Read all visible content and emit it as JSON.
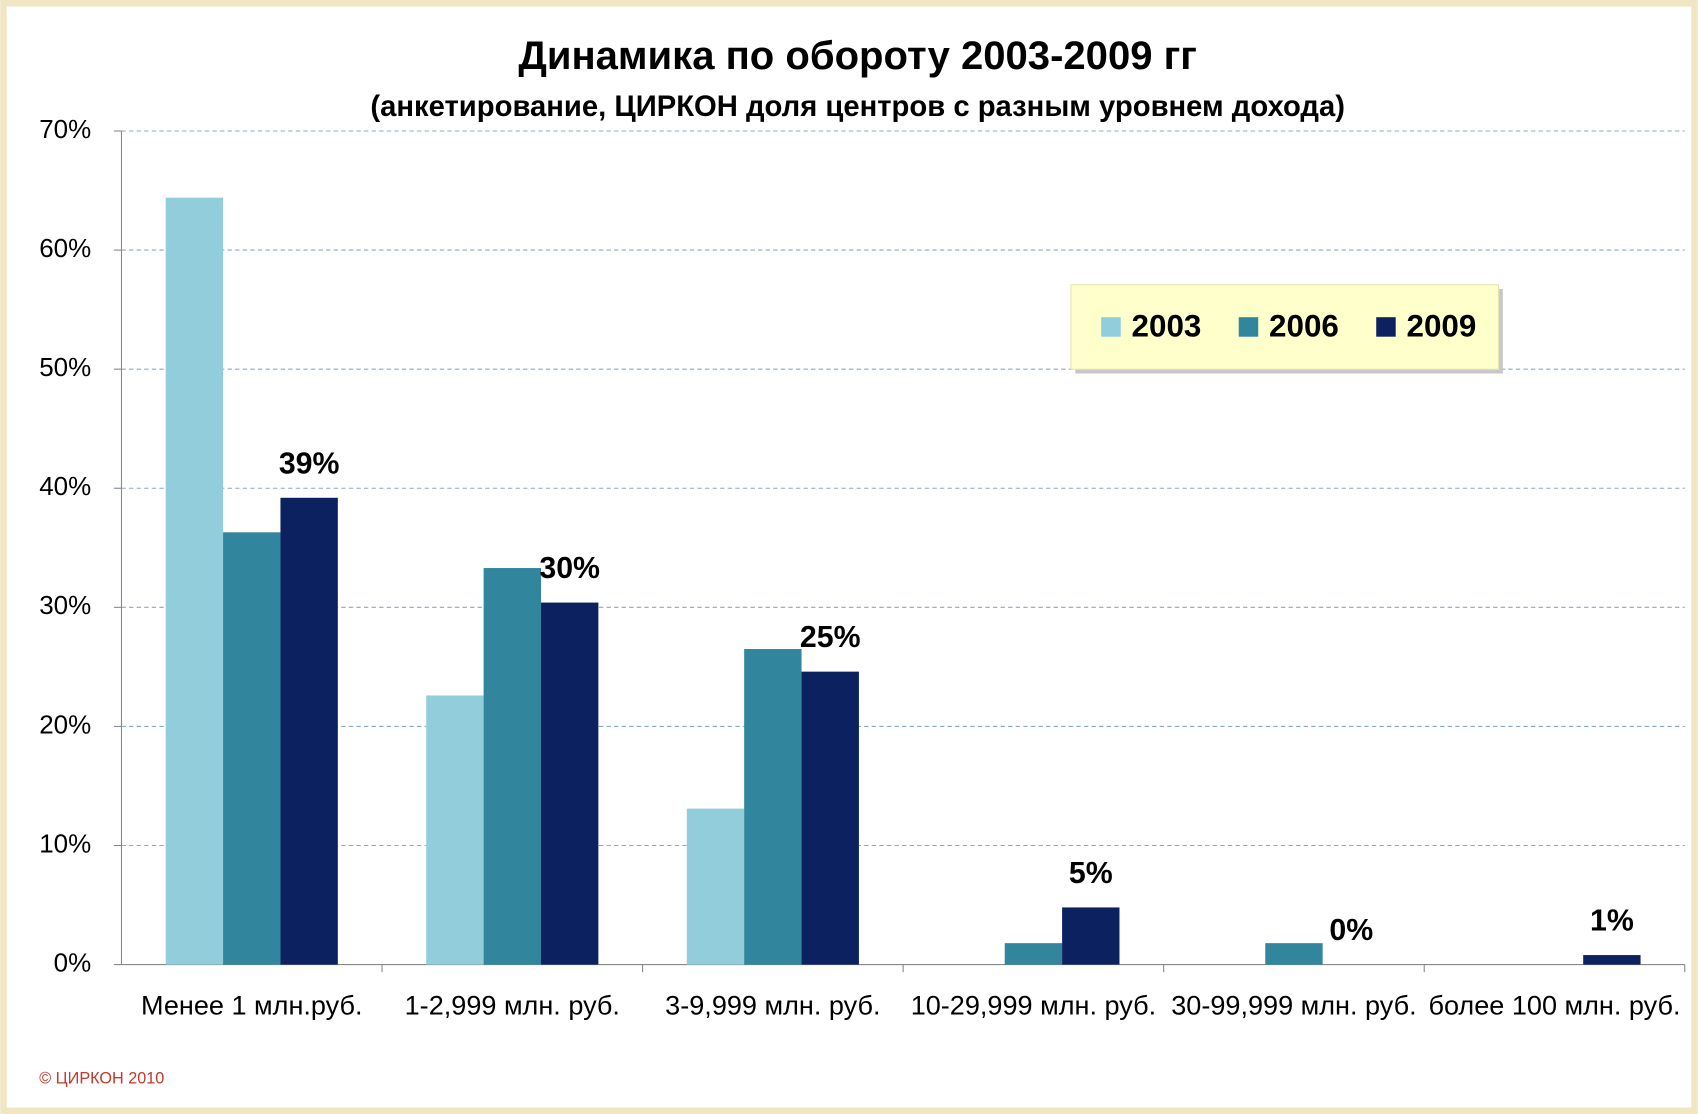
{
  "chart_data": {
    "type": "bar",
    "title": "Динамика по обороту 2003-2009 гг",
    "subtitle": "(анкетирование,  ЦИРКОН доля центров с разным уровнем дохода)",
    "categories": [
      "Менее 1 млн.руб.",
      "1-2,999 млн. руб.",
      "3-9,999 млн. руб.",
      "10-29,999 млн. руб.",
      "30-99,999 млн. руб.",
      "более 100 млн. руб."
    ],
    "series": [
      {
        "name": "2003",
        "color": "#92cddc",
        "values": [
          64.4,
          22.6,
          13.1,
          0,
          0,
          0
        ]
      },
      {
        "name": "2006",
        "color": "#31859c",
        "values": [
          36.3,
          33.3,
          26.5,
          1.8,
          1.8,
          0
        ]
      },
      {
        "name": "2009",
        "color": "#0c2160",
        "values": [
          39.2,
          30.4,
          24.6,
          4.8,
          0,
          0.8
        ],
        "value_labels": [
          "39%",
          "30%",
          "25%",
          "5%",
          "0%",
          "1%"
        ]
      }
    ],
    "ylim": [
      0,
      70
    ],
    "yticks": [
      {
        "value": 0,
        "label": "0%"
      },
      {
        "value": 10,
        "label": "10%"
      },
      {
        "value": 20,
        "label": "20%"
      },
      {
        "value": 30,
        "label": "30%"
      },
      {
        "value": 40,
        "label": "40%"
      },
      {
        "value": 50,
        "label": "50%"
      },
      {
        "value": 60,
        "label": "60%"
      },
      {
        "value": 70,
        "label": "70%"
      }
    ],
    "grid": true,
    "legend": "top-right",
    "footer": "© ЦИРКОН 2010"
  }
}
